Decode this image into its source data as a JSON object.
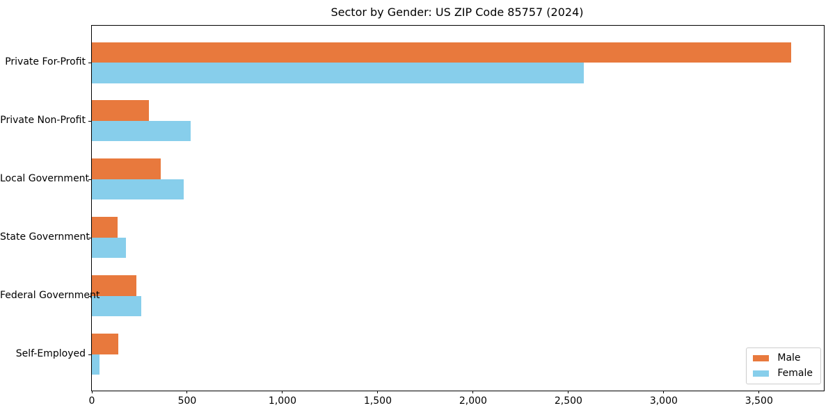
{
  "figure": {
    "title": "Sector by Gender: US ZIP Code 85757 (2024)",
    "background_color": "#ffffff",
    "spine_color": "#000000"
  },
  "chart_data": {
    "type": "bar",
    "orientation": "horizontal",
    "title": "Sector by Gender: US ZIP Code 85757 (2024)",
    "categories": [
      "Private For-Profit",
      "Private Non-Profit",
      "Local Government",
      "State Government",
      "Federal Government",
      "Self-Employed"
    ],
    "series": [
      {
        "name": "Male",
        "color": "#E8793D",
        "values": [
          3670,
          300,
          360,
          135,
          235,
          140
        ]
      },
      {
        "name": "Female",
        "color": "#87CEEB",
        "values": [
          2580,
          520,
          480,
          180,
          260,
          40
        ]
      }
    ],
    "xlabel": "",
    "ylabel": "",
    "xlim": [
      0,
      3840
    ],
    "xticks": [
      0,
      500,
      1000,
      1500,
      2000,
      2500,
      3000,
      3500
    ],
    "xtick_labels": [
      "0",
      "500",
      "1,000",
      "1,500",
      "2,000",
      "2,500",
      "3,000",
      "3,500"
    ],
    "grid": false,
    "legend": {
      "position": "lower-right",
      "entries": [
        "Male",
        "Female"
      ]
    }
  }
}
